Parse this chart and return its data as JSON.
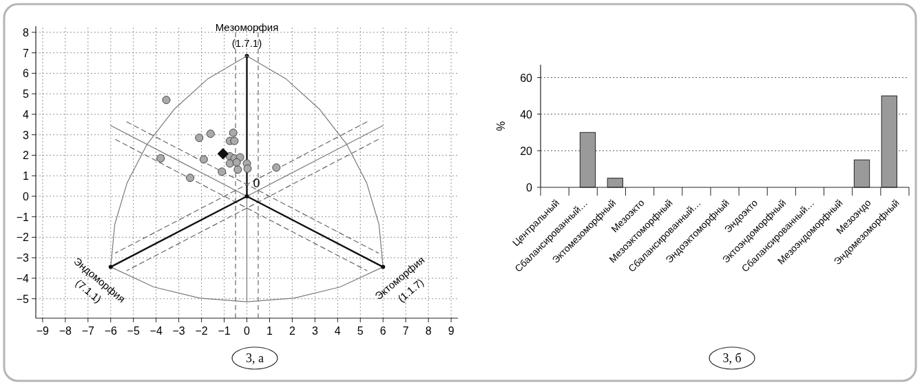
{
  "chart_data": [
    {
      "type": "scatter",
      "xlim": [
        -9.3,
        9.3
      ],
      "ylim": [
        -5.95,
        8.3
      ],
      "xticks": [
        -9,
        -8,
        -7,
        -6,
        -5,
        -4,
        -3,
        -2,
        -1,
        0,
        1,
        2,
        3,
        4,
        5,
        6,
        7,
        8,
        9
      ],
      "yticks": [
        -5,
        -4,
        -3,
        -2,
        -1,
        0,
        1,
        2,
        3,
        4,
        5,
        6,
        7,
        8
      ],
      "grid": true,
      "series": [
        {
          "type": "line",
          "color": "#7a7a7a",
          "x": [
            -6,
            -5.82,
            -5.28,
            -4.39,
            -3.19,
            -1.71,
            0
          ],
          "values": [
            -3.45,
            -1.37,
            0.65,
            2.55,
            4.26,
            5.74,
            6.85
          ]
        },
        {
          "type": "line",
          "color": "#7a7a7a",
          "x": [
            -6,
            -4.1,
            -2.08,
            0,
            2.08,
            4.1,
            6
          ],
          "values": [
            -3.45,
            -4.43,
            -4.97,
            -5.15,
            -4.97,
            -4.43,
            -3.45
          ]
        },
        {
          "type": "line",
          "color": "#7a7a7a",
          "x": [
            0,
            1.71,
            3.19,
            4.39,
            5.28,
            5.82,
            6
          ],
          "values": [
            6.85,
            5.74,
            4.26,
            2.55,
            0.65,
            -1.37,
            -3.45
          ]
        },
        {
          "type": "line",
          "color": "#777777",
          "x": [
            -6,
            0,
            6
          ],
          "values": [
            3.45,
            0,
            3.45
          ]
        },
        {
          "type": "line",
          "color": "#666666",
          "line_style": "dashed",
          "x": [
            -5.29,
            5.79
          ],
          "values": [
            3.63,
            -2.77
          ]
        },
        {
          "type": "line",
          "color": "#666666",
          "line_style": "dashed",
          "x": [
            -5.79,
            5.29
          ],
          "values": [
            2.77,
            -3.63
          ]
        },
        {
          "type": "line",
          "color": "#666666",
          "line_style": "dashed",
          "x": [
            5.29,
            -5.79
          ],
          "values": [
            3.63,
            -2.77
          ]
        },
        {
          "type": "line",
          "color": "#666666",
          "line_style": "dashed",
          "x": [
            5.79,
            -5.29
          ],
          "values": [
            2.77,
            -3.63
          ]
        },
        {
          "type": "line",
          "color": "#111111",
          "marker": "circle",
          "x": [
            -6,
            0,
            6
          ],
          "values": [
            -3.45,
            0,
            -3.45
          ]
        },
        {
          "type": "scatter",
          "color": "#aaaaaa",
          "marker": "circle",
          "x": [
            -3.55,
            -3.8,
            -2.5,
            -2.1,
            -1.6,
            -1.9,
            -1.1,
            -0.6,
            -0.75,
            -0.55,
            -0.75,
            -0.55,
            -0.3,
            -0.75,
            -0.45,
            -0.4,
            0,
            0.03,
            1.3
          ],
          "values": [
            4.7,
            1.85,
            0.9,
            2.85,
            3.05,
            1.8,
            1.2,
            3.1,
            2.7,
            2.7,
            1.95,
            1.85,
            1.9,
            1.6,
            1.65,
            1.3,
            1.6,
            1.35,
            1.4
          ]
        },
        {
          "type": "scatter",
          "color": "#111111",
          "marker": "diamond",
          "x": [
            -1.05
          ],
          "values": [
            2.07
          ]
        }
      ],
      "ref_lines": [
        {
          "axis": "x",
          "value": -0.5,
          "color": "#666666",
          "line_style": "dashed"
        },
        {
          "axis": "x",
          "value": 0.5,
          "color": "#666666",
          "line_style": "dashed"
        }
      ],
      "annotations": [
        {
          "text": "Мезоморфия",
          "x": 0,
          "y": 6.85
        },
        {
          "text": "(1.7.1)",
          "x": 0,
          "y": 6.85
        },
        {
          "text": "Эндоморфия",
          "x": -6,
          "y": -3.45
        },
        {
          "text": "(7.1.1)",
          "x": -6,
          "y": -3.45
        },
        {
          "text": "Эктоморфия",
          "x": 6,
          "y": -3.45
        },
        {
          "text": "(1.1.7)",
          "x": 6,
          "y": -3.45
        },
        {
          "text": "0",
          "x": 0,
          "y": 0
        },
        "3, а"
      ]
    },
    {
      "type": "bar",
      "categories": [
        "Центральный",
        "Сбалансированный…",
        "Эктомезоморфный",
        "Мезоэкто",
        "Мезоэктоморфный",
        "Сбалансированный…",
        "Эндоэктоморфный",
        "Эндоэкто",
        "Эктоэндоморфный",
        "Сбалансированный…",
        "Мезоэндоморфный",
        "Мезоэндо",
        "Эндомезоморфный"
      ],
      "values": [
        0,
        30,
        5,
        0,
        0,
        0,
        0,
        0,
        0,
        0,
        0,
        15,
        50
      ],
      "color": "#9a9a9a",
      "ylim": [
        0,
        67
      ],
      "yticks": [
        0,
        20,
        40,
        60
      ],
      "grid": "y",
      "ylabel": "%",
      "annotations": [
        "3, б"
      ]
    }
  ]
}
